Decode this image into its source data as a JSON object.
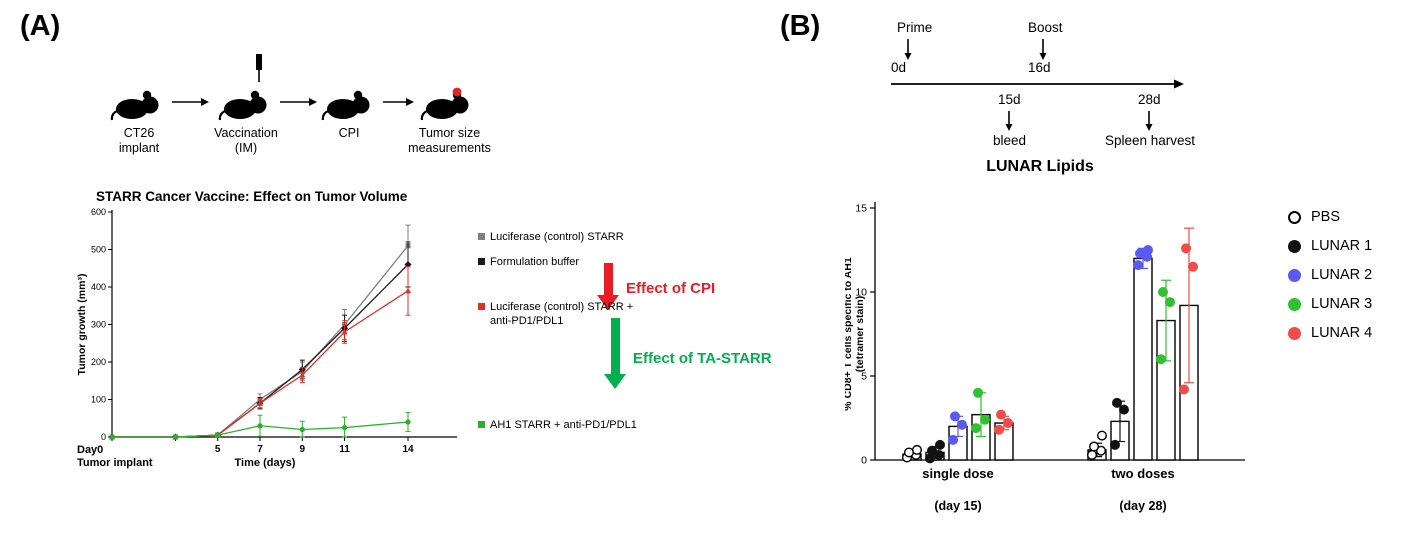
{
  "panel_a": {
    "label": "(A)",
    "schematic": {
      "steps": [
        {
          "label": "CT26 implant"
        },
        {
          "label": "Vaccination (IM)"
        },
        {
          "label": "CPI"
        },
        {
          "label": "Tumor size measurements"
        }
      ]
    },
    "cpi_arrow": {
      "text": "Effect of CPI",
      "color": "#ed1c24"
    },
    "ta_arrow": {
      "text": "Effect of TA-STARR",
      "color": "#00b050"
    }
  },
  "panel_b": {
    "label": "(B)",
    "timeline": {
      "prime": "Prime",
      "prime_day": "0d",
      "boost": "Boost",
      "boost_day": "16d",
      "bleed_day": "15d",
      "bleed": "bleed",
      "harvest_day": "28d",
      "harvest": "Spleen harvest"
    }
  },
  "chart_data": [
    {
      "type": "line",
      "title": "STARR Cancer Vaccine: Effect on Tumor Volume",
      "xlabel": "Time (days)",
      "ylabel": "Tumor growth (mm³)",
      "ylim": [
        0,
        600
      ],
      "yticks": [
        0,
        100,
        200,
        300,
        400,
        500,
        600
      ],
      "x": [
        0,
        3,
        5,
        7,
        9,
        11,
        14
      ],
      "xtick_labels": [
        "Day0",
        "",
        "5",
        "7",
        "9",
        "11",
        "14"
      ],
      "x0_sublabel": "Tumor implant",
      "series": [
        {
          "name": "Luciferase (control) STARR",
          "color": "#7f7f7f",
          "marker": "square",
          "values": [
            0,
            0,
            5,
            100,
            175,
            300,
            510
          ],
          "errors": [
            0,
            0,
            5,
            15,
            25,
            40,
            55
          ]
        },
        {
          "name": "Formulation buffer",
          "color": "#1a1a1a",
          "marker": "diamond",
          "values": [
            0,
            0,
            5,
            90,
            180,
            290,
            460
          ],
          "errors": [
            0,
            0,
            5,
            15,
            25,
            35,
            60
          ]
        },
        {
          "name": "Luciferase (control) STARR + anti-PD1/PDL1",
          "color": "#e03127",
          "marker": "triangle",
          "values": [
            0,
            0,
            5,
            90,
            165,
            280,
            390
          ],
          "errors": [
            0,
            0,
            5,
            12,
            20,
            30,
            65
          ]
        },
        {
          "name": "AH1 STARR + anti-PD1/PDL1",
          "color": "#2bb02b",
          "marker": "circle",
          "values": [
            0,
            0,
            5,
            30,
            20,
            25,
            40
          ],
          "errors": [
            0,
            0,
            5,
            28,
            22,
            28,
            25
          ]
        }
      ]
    },
    {
      "type": "bar",
      "title": "LUNAR Lipids",
      "ylabel_line1": "% CD8+ T cells specific to AH1",
      "ylabel_line2": "(tetramer stain)",
      "ylim": [
        0,
        15
      ],
      "yticks": [
        0,
        5,
        10,
        15
      ],
      "groups": [
        {
          "label": "single dose",
          "sublabel": "(day 15)"
        },
        {
          "label": "two doses",
          "sublabel": "(day 28)"
        }
      ],
      "conditions": [
        {
          "name": "PBS",
          "color": "#ffffff",
          "open": true
        },
        {
          "name": "LUNAR 1",
          "color": "#111111"
        },
        {
          "name": "LUNAR 2",
          "color": "#5a5af0"
        },
        {
          "name": "LUNAR 3",
          "color": "#30c030"
        },
        {
          "name": "LUNAR 4",
          "color": "#f04c4c"
        }
      ],
      "bars": [
        {
          "group": 0,
          "values": [
            0.35,
            0.45,
            2.0,
            2.7,
            2.2
          ],
          "errors": [
            0.15,
            0.35,
            0.6,
            1.3,
            0.4
          ],
          "points": [
            [
              0.15,
              0.3,
              0.45,
              0.6
            ],
            [
              0.1,
              0.3,
              0.55,
              0.9
            ],
            [
              1.2,
              2.1,
              2.6
            ],
            [
              1.9,
              2.4,
              4.0
            ],
            [
              1.8,
              2.2,
              2.7
            ]
          ]
        },
        {
          "group": 1,
          "values": [
            0.6,
            2.3,
            12.0,
            8.3,
            9.2
          ],
          "errors": [
            0.4,
            1.2,
            0.6,
            2.4,
            4.6
          ],
          "points": [
            [
              0.3,
              0.55,
              0.8,
              1.45
            ],
            [
              0.9,
              3.0,
              3.4
            ],
            [
              11.6,
              12.1,
              12.3,
              12.5
            ],
            [
              6.0,
              9.4,
              10.0
            ],
            [
              4.2,
              11.5,
              12.6
            ]
          ]
        }
      ]
    }
  ]
}
